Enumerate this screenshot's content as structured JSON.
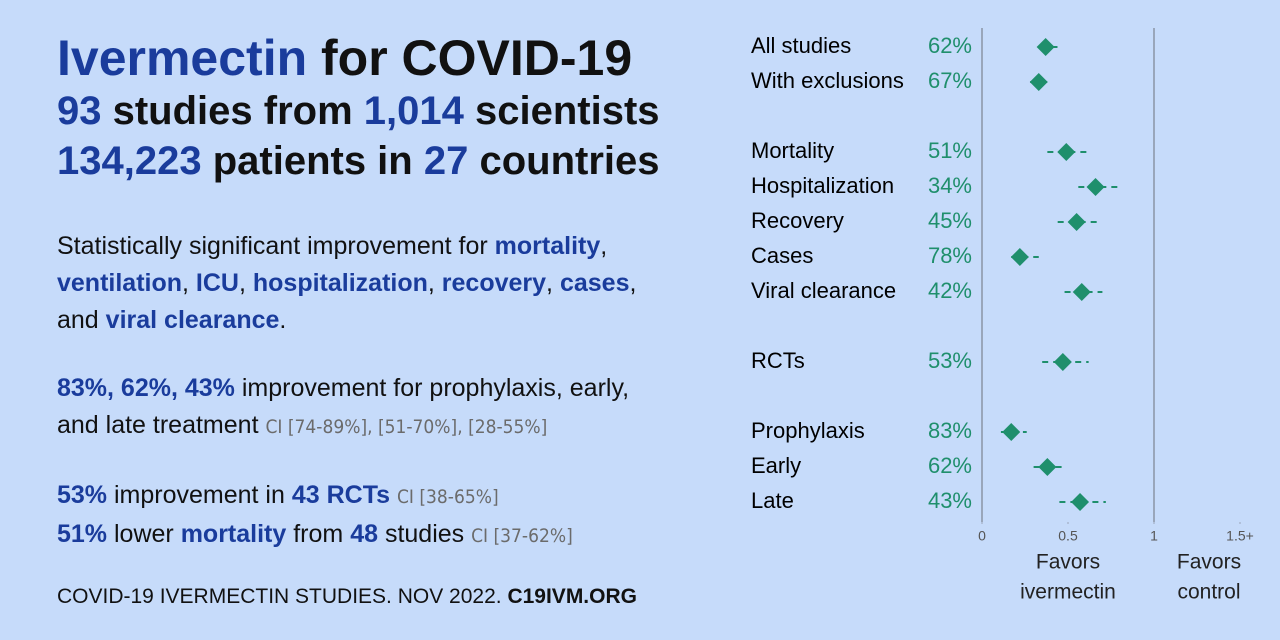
{
  "header": {
    "lines": [
      [
        {
          "text": "Ivermectin",
          "style": "hl"
        },
        " for COVID-19"
      ],
      [
        {
          "text": "93",
          "style": "hl"
        },
        " studies from ",
        {
          "text": "1,014",
          "style": "hl"
        },
        " scientists"
      ],
      [
        {
          "text": "134,223",
          "style": "hl"
        },
        " patients in ",
        {
          "text": "27",
          "style": "hl"
        },
        " countries"
      ]
    ]
  },
  "paragraphs": [
    [
      [
        "Statistically significant improvement for ",
        {
          "text": "mortality",
          "style": "hl"
        },
        ","
      ],
      [
        {
          "text": "ventilation",
          "style": "hl"
        },
        ", ",
        {
          "text": "ICU",
          "style": "hl"
        },
        ", ",
        {
          "text": "hospitalization",
          "style": "hl"
        },
        ", ",
        {
          "text": "recovery",
          "style": "hl"
        },
        ", ",
        {
          "text": "cases",
          "style": "hl"
        },
        ","
      ],
      [
        "and ",
        {
          "text": "viral clearance",
          "style": "hl"
        },
        "."
      ]
    ],
    [
      [
        {
          "text": "83%, 62%, 43%",
          "style": "hl"
        },
        " improvement for prophylaxis, early,"
      ],
      [
        "and late treatment ",
        {
          "text": "CI [74-89%], [51-70%], [28-55%]",
          "style": "ci"
        }
      ]
    ],
    [
      [
        {
          "text": "53%",
          "style": "hl"
        },
        " improvement in ",
        {
          "text": "43 RCTs",
          "style": "hl"
        },
        " ",
        {
          "text": "CI [38-65%]",
          "style": "ci"
        }
      ],
      [
        {
          "text": "51%",
          "style": "hl"
        },
        " lower ",
        {
          "text": "mortality",
          "style": "hl"
        },
        " from ",
        {
          "text": "48",
          "style": "hl"
        },
        " studies ",
        {
          "text": "CI [37-62%]",
          "style": "ci"
        }
      ]
    ]
  ],
  "footer": [
    "COVID-19 IVERMECTIN STUDIES. NOV 2022. ",
    {
      "text": "C19IVM.ORG",
      "style": "strong"
    }
  ],
  "chart_data": {
    "type": "forest",
    "categories": [
      "All studies",
      "With exclusions",
      null,
      "Mortality",
      "Hospitalization",
      "Recovery",
      "Cases",
      "Viral clearance",
      null,
      "RCTs",
      null,
      "Prophylaxis",
      "Early",
      "Late"
    ],
    "improvement": [
      "62%",
      "67%",
      null,
      "51%",
      "34%",
      "45%",
      "78%",
      "42%",
      null,
      "53%",
      null,
      "83%",
      "62%",
      "43%"
    ],
    "values": [
      0.37,
      0.33,
      null,
      0.49,
      0.66,
      0.55,
      0.22,
      0.58,
      null,
      0.47,
      null,
      0.17,
      0.38,
      0.57
    ],
    "lower": [
      0.34,
      0.28,
      null,
      0.38,
      0.56,
      0.44,
      0.17,
      0.48,
      null,
      0.35,
      null,
      0.11,
      0.3,
      0.45
    ],
    "upper": [
      0.45,
      0.39,
      null,
      0.63,
      0.79,
      0.67,
      0.33,
      0.7,
      null,
      0.62,
      null,
      0.26,
      0.49,
      0.72
    ],
    "color": "#1f8f6c",
    "xlim": [
      0,
      1.5
    ],
    "xticks": [
      0,
      0.5,
      1,
      {
        "value": 1.5,
        "label": "1.5+"
      }
    ],
    "reference_lines": [
      0,
      1
    ],
    "x_labels": [
      [
        "Favors",
        "ivermectin"
      ],
      [
        "Favors",
        "control"
      ]
    ]
  }
}
